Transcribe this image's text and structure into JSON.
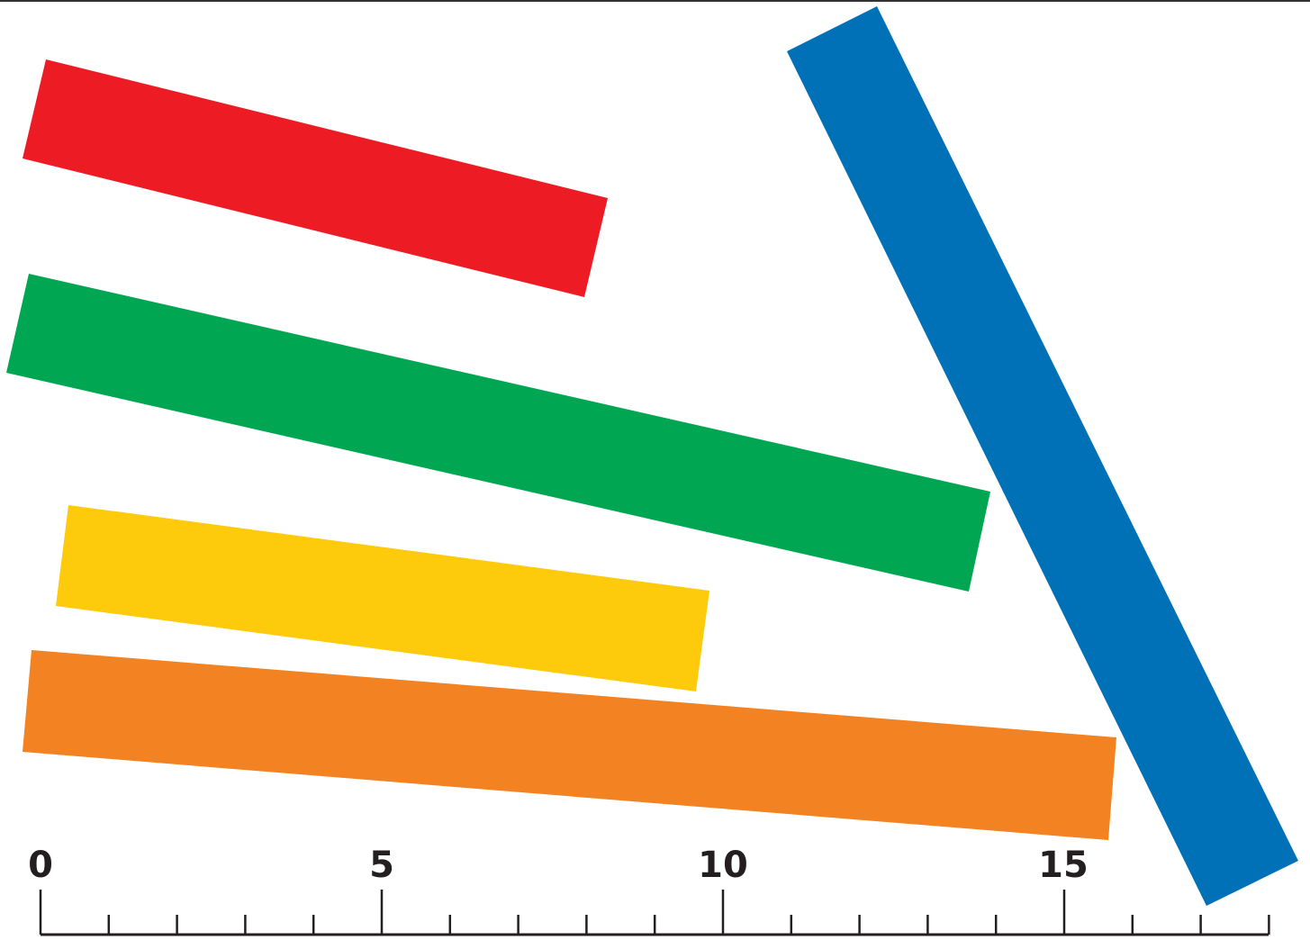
{
  "ruler": {
    "min": 0,
    "max": 18,
    "minor_step": 1,
    "labels": [
      "0",
      "5",
      "10",
      "15"
    ],
    "color": "#231f20"
  },
  "sticks": [
    {
      "name": "red-stick",
      "color": "#ed1c24"
    },
    {
      "name": "green-stick",
      "color": "#00a651"
    },
    {
      "name": "yellow-stick",
      "color": "#fdcb0b"
    },
    {
      "name": "orange-stick",
      "color": "#f38222"
    },
    {
      "name": "blue-stick",
      "color": "#0071b6"
    }
  ]
}
